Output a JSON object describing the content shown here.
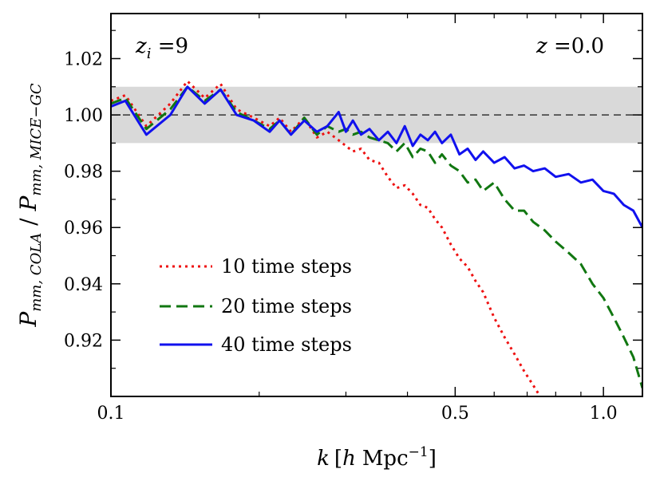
{
  "chart_data": {
    "type": "line",
    "xscale": "log",
    "xlim": [
      0.1,
      1.2
    ],
    "ylim": [
      0.9,
      1.036
    ],
    "xticks": [
      0.1,
      0.5,
      1.0
    ],
    "xtick_labels": [
      "0.1",
      "0.5",
      "1.0"
    ],
    "yticks": [
      0.92,
      0.94,
      0.96,
      0.98,
      1.0,
      1.02
    ],
    "ytick_labels": [
      "0.92",
      "0.94",
      "0.96",
      "0.98",
      "1.00",
      "1.02"
    ],
    "xlabel": {
      "prefix": "k",
      "bracket_open": "[",
      "h": "h",
      "unit": "Mpc",
      "exponent": "−1",
      "bracket_close": "]"
    },
    "ylabel": {
      "p1": "P",
      "sub1": "mm, COLA",
      "slash": " / ",
      "p2": "P",
      "sub2": "mm, MICE−GC"
    },
    "annotations": {
      "left": {
        "var": "z",
        "sub": "i",
        "rest": " =9"
      },
      "right": {
        "var": "z",
        "rest": " =0.0"
      }
    },
    "band": {
      "lower": 0.99,
      "upper": 1.01,
      "color": "#d9d9d9"
    },
    "reference_line": {
      "y": 1.0,
      "color": "#000000"
    },
    "series": [
      {
        "name": "10 time steps",
        "color": "#ee1111",
        "dash": "dotted",
        "x": [
          0.1,
          0.107,
          0.118,
          0.132,
          0.143,
          0.155,
          0.167,
          0.18,
          0.195,
          0.21,
          0.22,
          0.232,
          0.247,
          0.262,
          0.275,
          0.29,
          0.3,
          0.31,
          0.322,
          0.335,
          0.35,
          0.365,
          0.38,
          0.395,
          0.41,
          0.425,
          0.44,
          0.455,
          0.47,
          0.49,
          0.51,
          0.53,
          0.55,
          0.57,
          0.6,
          0.63,
          0.66,
          0.69,
          0.72,
          0.75
        ],
        "values": [
          1.005,
          1.007,
          0.996,
          1.004,
          1.012,
          1.006,
          1.011,
          1.002,
          0.999,
          0.996,
          0.999,
          0.994,
          0.999,
          0.992,
          0.994,
          0.991,
          0.989,
          0.987,
          0.988,
          0.984,
          0.983,
          0.978,
          0.974,
          0.975,
          0.972,
          0.968,
          0.967,
          0.963,
          0.96,
          0.954,
          0.949,
          0.946,
          0.941,
          0.937,
          0.928,
          0.921,
          0.915,
          0.909,
          0.904,
          0.899
        ]
      },
      {
        "name": "20 time steps",
        "color": "#117711",
        "dash": "dashed",
        "x": [
          0.1,
          0.107,
          0.118,
          0.132,
          0.143,
          0.155,
          0.167,
          0.18,
          0.195,
          0.21,
          0.22,
          0.232,
          0.247,
          0.262,
          0.275,
          0.29,
          0.3,
          0.31,
          0.322,
          0.335,
          0.35,
          0.365,
          0.38,
          0.395,
          0.41,
          0.425,
          0.44,
          0.455,
          0.47,
          0.49,
          0.51,
          0.53,
          0.55,
          0.57,
          0.6,
          0.63,
          0.66,
          0.69,
          0.72,
          0.76,
          0.8,
          0.85,
          0.9,
          0.95,
          1.0,
          1.05,
          1.1,
          1.15,
          1.2
        ],
        "values": [
          1.004,
          1.006,
          0.995,
          1.002,
          1.01,
          1.005,
          1.009,
          1.001,
          0.998,
          0.995,
          0.998,
          0.993,
          0.999,
          0.993,
          0.996,
          0.994,
          0.995,
          0.993,
          0.994,
          0.992,
          0.991,
          0.99,
          0.987,
          0.99,
          0.985,
          0.988,
          0.987,
          0.983,
          0.986,
          0.982,
          0.98,
          0.976,
          0.977,
          0.973,
          0.976,
          0.97,
          0.966,
          0.966,
          0.962,
          0.959,
          0.955,
          0.951,
          0.947,
          0.94,
          0.935,
          0.928,
          0.921,
          0.914,
          0.903
        ]
      },
      {
        "name": "40 time steps",
        "color": "#1111ee",
        "dash": "solid",
        "x": [
          0.1,
          0.107,
          0.118,
          0.132,
          0.143,
          0.155,
          0.167,
          0.18,
          0.195,
          0.21,
          0.22,
          0.232,
          0.247,
          0.262,
          0.275,
          0.29,
          0.3,
          0.31,
          0.322,
          0.335,
          0.35,
          0.365,
          0.38,
          0.395,
          0.41,
          0.425,
          0.44,
          0.455,
          0.47,
          0.49,
          0.51,
          0.53,
          0.55,
          0.57,
          0.6,
          0.63,
          0.66,
          0.69,
          0.72,
          0.76,
          0.8,
          0.85,
          0.9,
          0.95,
          1.0,
          1.05,
          1.1,
          1.15,
          1.2
        ],
        "values": [
          1.003,
          1.005,
          0.993,
          1.0,
          1.01,
          1.004,
          1.009,
          1.0,
          0.998,
          0.994,
          0.998,
          0.993,
          0.998,
          0.994,
          0.996,
          1.001,
          0.994,
          0.998,
          0.993,
          0.995,
          0.991,
          0.994,
          0.99,
          0.996,
          0.989,
          0.993,
          0.991,
          0.994,
          0.99,
          0.993,
          0.986,
          0.988,
          0.984,
          0.987,
          0.983,
          0.985,
          0.981,
          0.982,
          0.98,
          0.981,
          0.978,
          0.979,
          0.976,
          0.977,
          0.973,
          0.972,
          0.968,
          0.966,
          0.96
        ]
      }
    ]
  }
}
